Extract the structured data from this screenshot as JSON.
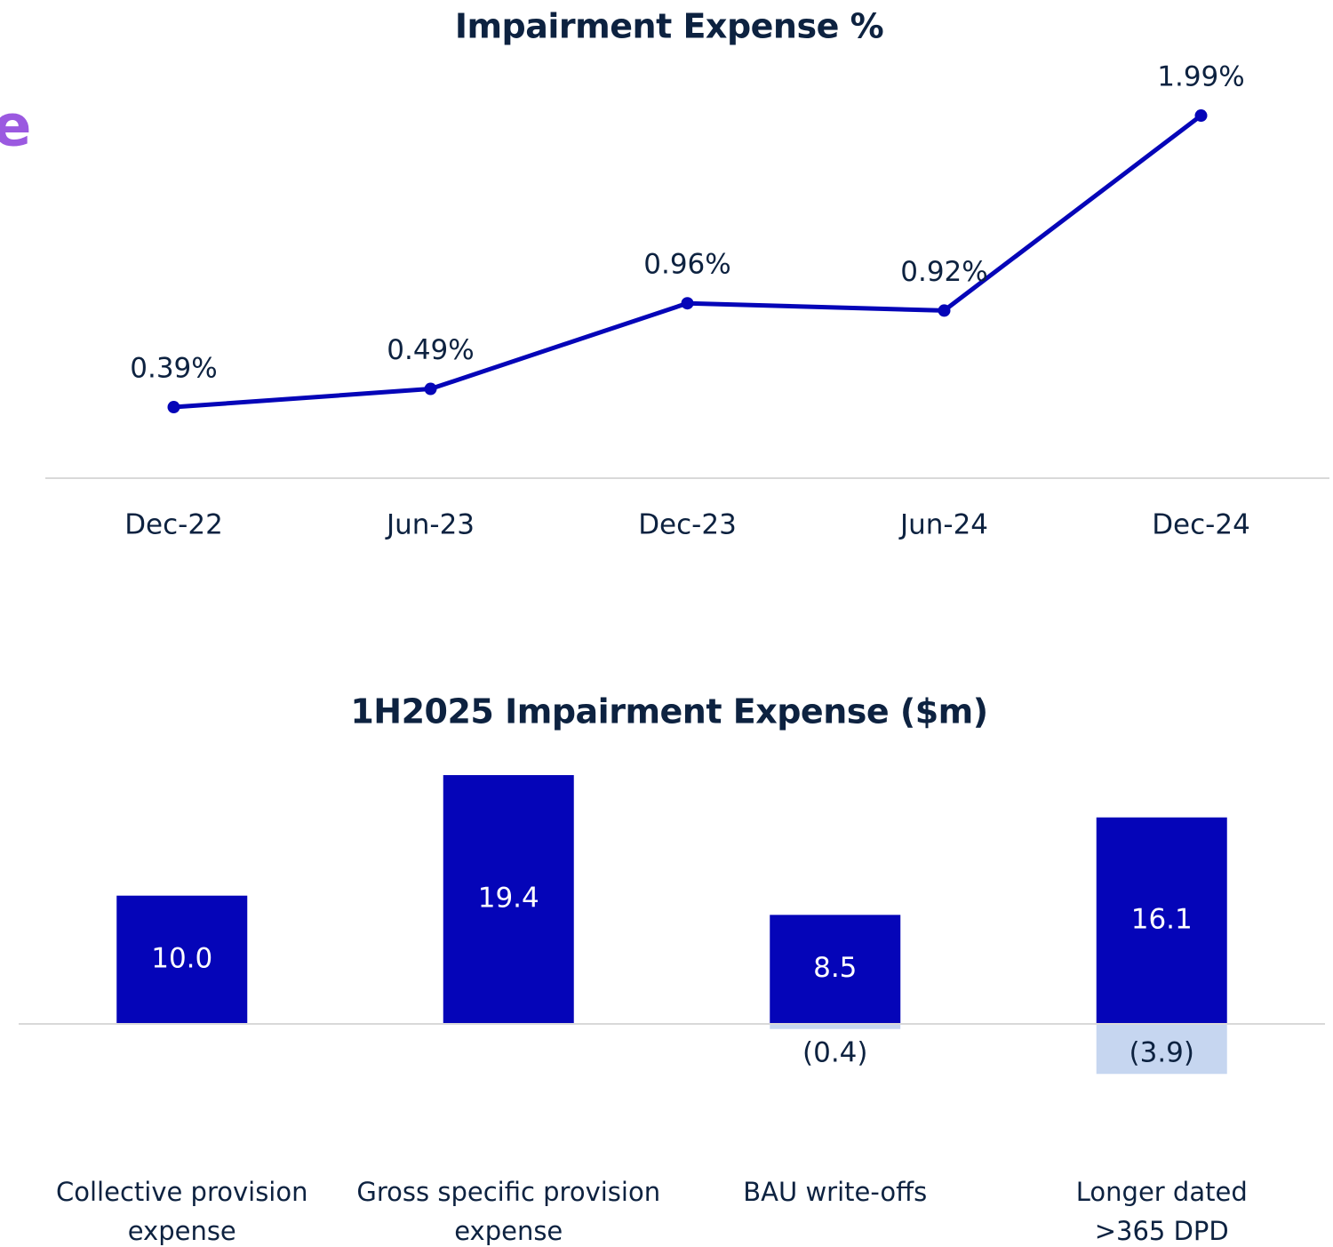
{
  "fragment_text": "e",
  "chart_data": [
    {
      "type": "line",
      "title": "Impairment Expense %",
      "categories": [
        "Dec-22",
        "Jun-23",
        "Dec-23",
        "Jun-24",
        "Dec-24"
      ],
      "values": [
        0.39,
        0.49,
        0.96,
        0.92,
        1.99
      ],
      "value_labels": [
        "0.39%",
        "0.49%",
        "0.96%",
        "0.92%",
        "1.99%"
      ],
      "color": "#0505b8",
      "ylim": [
        0,
        2
      ]
    },
    {
      "type": "bar",
      "title": "1H2025 Impairment Expense ($m)",
      "categories": [
        "Collective provision\nexpense",
        "Gross specific provision\nexpense",
        "BAU write-offs",
        "Longer dated\n>365 DPD"
      ],
      "series": [
        {
          "color": "#0505b8",
          "values": [
            10.0,
            19.4,
            8.5,
            16.1
          ],
          "value_labels": [
            "10.0",
            "19.4",
            "8.5",
            "16.1"
          ]
        },
        {
          "color": "#c6d6f0",
          "values": [
            null,
            null,
            -0.4,
            -3.9
          ],
          "value_labels": [
            null,
            null,
            "(0.4)",
            "(3.9)"
          ]
        }
      ],
      "ylim": [
        -4,
        20
      ]
    }
  ]
}
